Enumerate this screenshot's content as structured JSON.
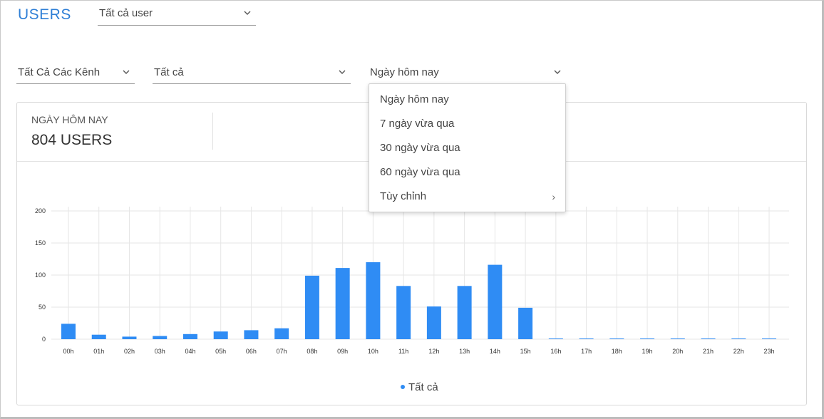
{
  "header": {
    "title": "USERS",
    "user_filter": "Tất cả user"
  },
  "filters": {
    "channel": "Tất Cả Các Kênh",
    "segment": "Tất cả",
    "period": "Ngày hôm nay"
  },
  "period_menu": {
    "items": [
      {
        "label": "Ngày hôm nay"
      },
      {
        "label": "7 ngày vừa qua"
      },
      {
        "label": "30 ngày vừa qua"
      },
      {
        "label": "60 ngày vừa qua"
      },
      {
        "label": "Tùy chỉnh",
        "submenu": true
      }
    ],
    "submenu_icon": "chevron-right-icon"
  },
  "stats": {
    "label": "NGÀY HÔM NAY",
    "value": "804 USERS"
  },
  "chart_data": {
    "type": "bar",
    "categories": [
      "00h",
      "01h",
      "02h",
      "03h",
      "04h",
      "05h",
      "06h",
      "07h",
      "08h",
      "09h",
      "10h",
      "11h",
      "12h",
      "13h",
      "14h",
      "15h",
      "16h",
      "17h",
      "18h",
      "19h",
      "20h",
      "21h",
      "22h",
      "23h"
    ],
    "series": [
      {
        "name": "Tất cả",
        "values": [
          24,
          7,
          4,
          5,
          8,
          12,
          14,
          17,
          99,
          111,
          120,
          83,
          51,
          83,
          116,
          49,
          1,
          1,
          1,
          1,
          1,
          1,
          1,
          1
        ],
        "color": "#2f8cf4"
      }
    ],
    "yticks": [
      0,
      50,
      100,
      150,
      200
    ],
    "ylim": [
      0,
      200
    ],
    "grid": true,
    "legend": "bottom-center"
  },
  "colors": {
    "accent": "#2f7fd6",
    "bar": "#2f8cf4"
  }
}
